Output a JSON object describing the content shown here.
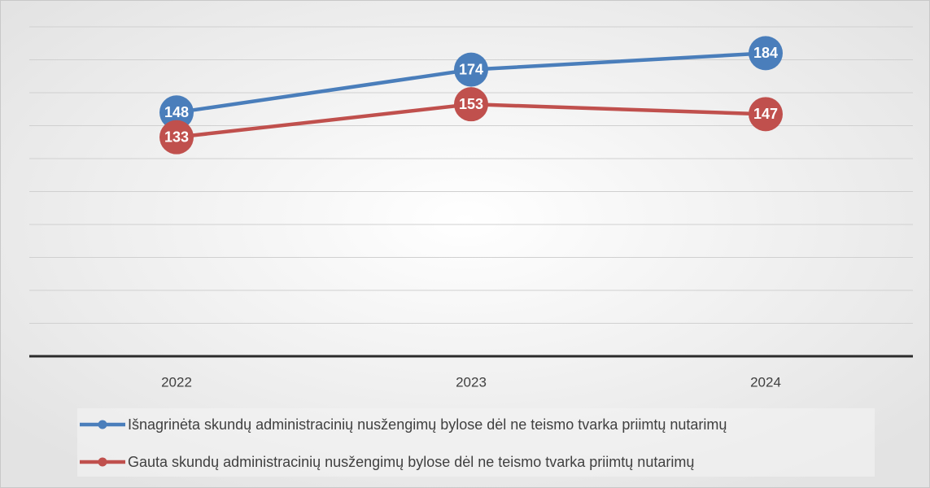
{
  "chart_data": {
    "type": "line",
    "categories": [
      "2022",
      "2023",
      "2024"
    ],
    "series": [
      {
        "name": "Išnagrinėta skundų administracinių nusžengimų bylose dėl ne teismo tvarka priimtų nutarimų",
        "color": "#4a7ebb",
        "values": [
          148,
          174,
          184
        ]
      },
      {
        "name": "Gauta skundų administracinių nusžengimų bylose dėl ne teismo tvarka priimtų nutarimų",
        "color": "#c0504d",
        "values": [
          133,
          153,
          147
        ]
      }
    ],
    "ylim": [
      0,
      200
    ],
    "yticks": [
      0,
      20,
      40,
      60,
      80,
      100,
      120,
      140,
      160,
      180,
      200
    ],
    "grid": true
  }
}
